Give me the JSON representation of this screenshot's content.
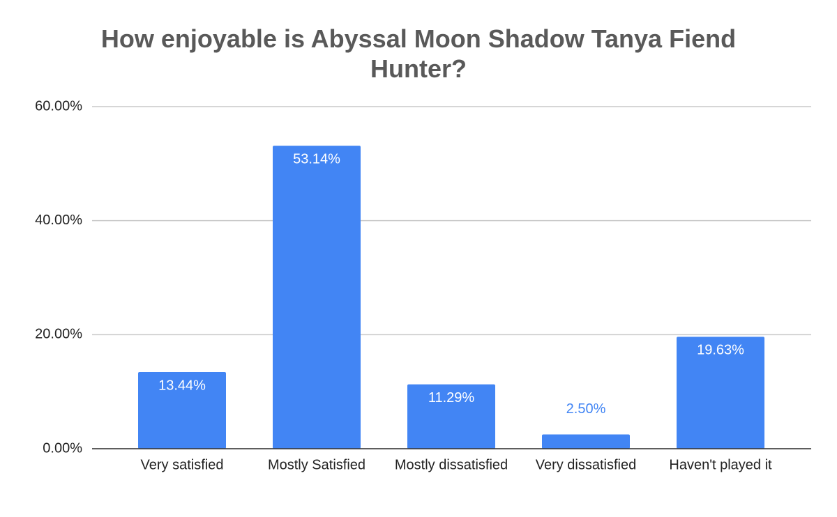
{
  "chart_data": {
    "type": "bar",
    "title": "How enjoyable is Abyssal Moon Shadow Tanya Fiend Hunter?",
    "categories": [
      "Very satisfied",
      "Mostly Satisfied",
      "Mostly dissatisfied",
      "Very dissatisfied",
      "Haven't played it"
    ],
    "values": [
      13.44,
      53.14,
      11.29,
      2.5,
      19.63
    ],
    "value_labels": [
      "13.44%",
      "53.14%",
      "11.29%",
      "2.50%",
      "19.63%"
    ],
    "color": "#4285f4",
    "ylim": [
      0,
      60
    ],
    "yticks": [
      {
        "value": 0,
        "label": "0.00%"
      },
      {
        "value": 20,
        "label": "20.00%"
      },
      {
        "value": 40,
        "label": "40.00%"
      },
      {
        "value": 60,
        "label": "60.00%"
      }
    ],
    "grid": true
  }
}
